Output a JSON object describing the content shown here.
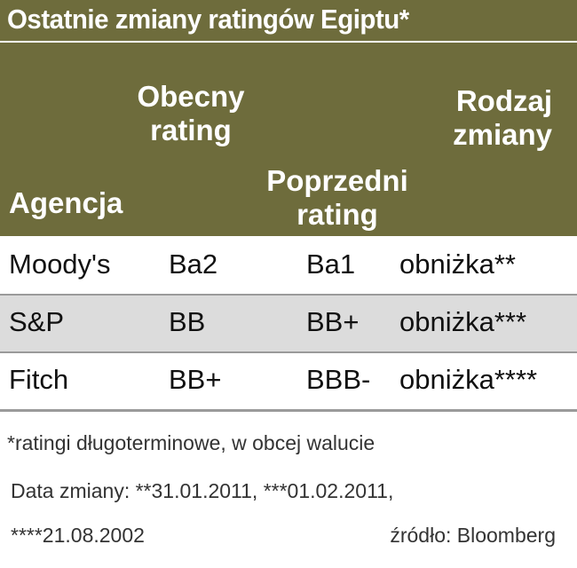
{
  "title": "Ostatnie zmiany ratingów Egiptu*",
  "table": {
    "headers": [
      "Agencja",
      "Obecny rating",
      "Poprzedni rating",
      "Rodzaj zmiany"
    ],
    "rows": [
      [
        "Moody's",
        "Ba2",
        "Ba1",
        "obniżka**"
      ],
      [
        "S&P",
        "BB",
        "BB+",
        "obniżka***"
      ],
      [
        "Fitch",
        "BB+",
        "BBB-",
        "obniżka****"
      ]
    ]
  },
  "footnotes": [
    "*ratingi długoterminowe, w obcej walucie",
    "Data zmiany: **31.01.2011, ***01.02.2011,",
    "****21.08.2002"
  ],
  "source": "źródło: Bloomberg"
}
